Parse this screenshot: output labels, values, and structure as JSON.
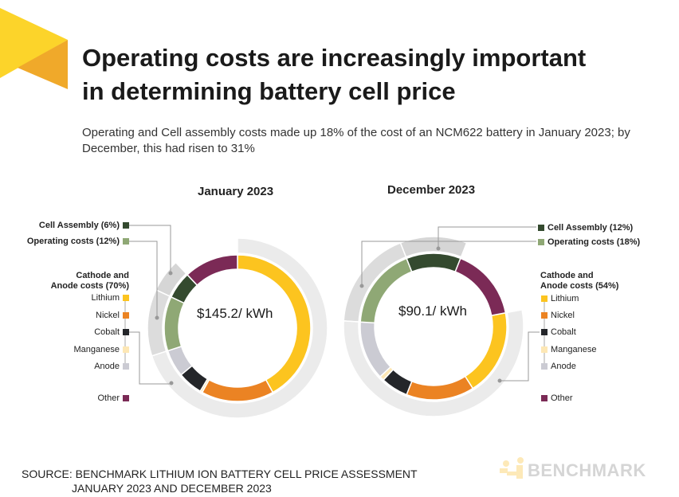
{
  "title_line1": "Operating costs are increasingly important",
  "title_line2": "in determining battery cell price",
  "subtitle": "Operating and Cell assembly costs made up 18% of the cost of an NCM622 battery in January 2023; by December, this had risen to 31%",
  "source_line1": "SOURCE: BENCHMARK LITHIUM ION BATTERY CELL PRICE ASSESSMENT",
  "source_line2": "JANUARY 2023 AND DECEMBER 2023",
  "logo_text": "BENCHMARK",
  "colors": {
    "Lithium": "#fcc41f",
    "Nickel": "#eb8323",
    "Cobalt": "#24262a",
    "Manganese": "#fde7b5",
    "Anode": "#cbcbd3",
    "Operating costs": "#8fa875",
    "Cell Assembly": "#344a2f",
    "Other": "#7b2a56"
  },
  "chart_data": [
    {
      "type": "pie",
      "title": "January 2023",
      "center_label": "$145.2/ kWh",
      "group_label": "Cathode and Anode costs (70%)",
      "legend": {
        "cell": "Cell Assembly (6%)",
        "operating": "Operating costs (12%)",
        "lithium": "Lithium",
        "nickel": "Nickel",
        "cobalt": "Cobalt",
        "manganese": "Manganese",
        "anode": "Anode",
        "other": "Other"
      },
      "slices": [
        {
          "name": "Lithium",
          "value": 42,
          "group": "cathode"
        },
        {
          "name": "Nickel",
          "value": 16,
          "group": "cathode"
        },
        {
          "name": "Manganese",
          "value": 0.5,
          "group": "cathode"
        },
        {
          "name": "Cobalt",
          "value": 5.5,
          "group": "cathode"
        },
        {
          "name": "Anode",
          "value": 6,
          "group": "cathode"
        },
        {
          "name": "Operating costs",
          "value": 12,
          "group": "operating"
        },
        {
          "name": "Cell Assembly",
          "value": 6,
          "group": "cell"
        },
        {
          "name": "Other",
          "value": 12,
          "group": "other"
        }
      ]
    },
    {
      "type": "pie",
      "title": "December 2023",
      "center_label": "$90.1/ kWh",
      "group_label": "Cathode and Anode costs (54%)",
      "legend": {
        "cell": "Cell Assembly (12%)",
        "operating": "Operating costs (18%)",
        "lithium": "Lithium",
        "nickel": "Nickel",
        "cobalt": "Cobalt",
        "manganese": "Manganese",
        "anode": "Anode",
        "other": "Other"
      },
      "start_offset_pct": 22,
      "slices": [
        {
          "name": "Lithium",
          "value": 19,
          "group": "cathode"
        },
        {
          "name": "Nickel",
          "value": 15,
          "group": "cathode"
        },
        {
          "name": "Cobalt",
          "value": 6,
          "group": "cathode"
        },
        {
          "name": "Manganese",
          "value": 1,
          "group": "cathode"
        },
        {
          "name": "Anode",
          "value": 13,
          "group": "cathode"
        },
        {
          "name": "Operating costs",
          "value": 18,
          "group": "operating"
        },
        {
          "name": "Cell Assembly",
          "value": 12,
          "group": "cell"
        },
        {
          "name": "Other",
          "value": 16,
          "group": "other"
        }
      ]
    }
  ]
}
